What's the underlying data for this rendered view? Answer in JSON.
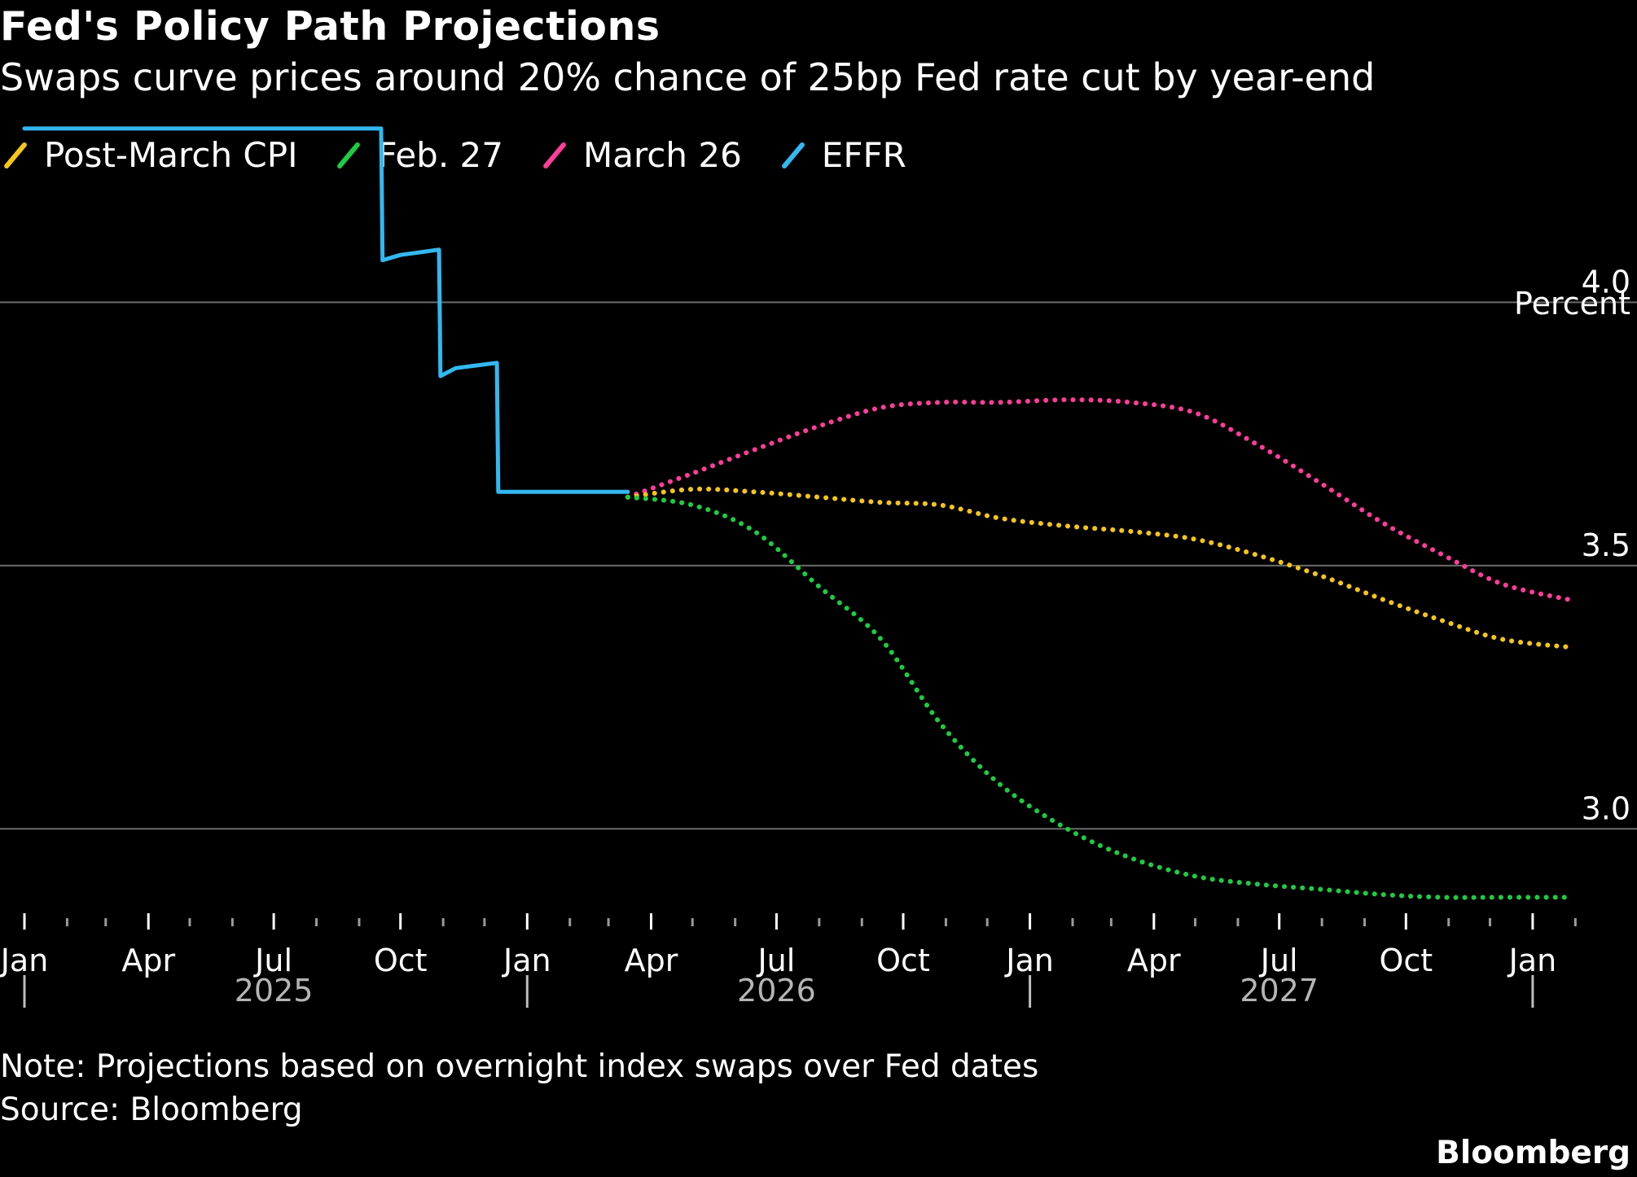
{
  "title": "Fed's Policy Path Projections",
  "subtitle": "Swaps curve prices around 20% chance of 25bp Fed rate cut by year-end",
  "note": "Note: Projections based on overnight index swaps over Fed dates",
  "source": "Source: Bloomberg",
  "brand": "Bloomberg",
  "chart_data": {
    "type": "line",
    "ylabel": "Percent",
    "ylim": [
      2.75,
      4.35
    ],
    "y_ticks": [
      {
        "value": 3.0,
        "label": "3.0"
      },
      {
        "value": 3.5,
        "label": "3.5"
      },
      {
        "value": 4.0,
        "label": "4.0"
      }
    ],
    "y_axis_side": "right",
    "grid": "horizontal",
    "x_range": [
      "2025-01-01",
      "2028-02-15"
    ],
    "x_month_ticks": [
      {
        "date": "2025-01-01",
        "label": "Jan"
      },
      {
        "date": "2025-04-01",
        "label": "Apr"
      },
      {
        "date": "2025-07-01",
        "label": "Jul"
      },
      {
        "date": "2025-10-01",
        "label": "Oct"
      },
      {
        "date": "2026-01-01",
        "label": "Jan"
      },
      {
        "date": "2026-04-01",
        "label": "Apr"
      },
      {
        "date": "2026-07-01",
        "label": "Jul"
      },
      {
        "date": "2026-10-01",
        "label": "Oct"
      },
      {
        "date": "2027-01-01",
        "label": "Jan"
      },
      {
        "date": "2027-04-01",
        "label": "Apr"
      },
      {
        "date": "2027-07-01",
        "label": "Jul"
      },
      {
        "date": "2027-10-01",
        "label": "Oct"
      },
      {
        "date": "2028-01-01",
        "label": "Jan"
      }
    ],
    "x_year_labels": [
      {
        "date": "2025-07-01",
        "label": "2025"
      },
      {
        "date": "2026-07-01",
        "label": "2026"
      },
      {
        "date": "2027-07-01",
        "label": "2027"
      }
    ],
    "x_year_separators": [
      "2025-01-01",
      "2026-01-01",
      "2027-01-01",
      "2028-01-01"
    ],
    "legend_position": "top-left",
    "series": [
      {
        "name": "Post-March CPI",
        "color": "#f5c518",
        "style": "dotted",
        "points": [
          [
            "2026-03-15",
            3.63
          ],
          [
            "2026-05-01",
            3.645
          ],
          [
            "2026-06-15",
            3.64
          ],
          [
            "2026-08-01",
            3.63
          ],
          [
            "2026-09-15",
            3.62
          ],
          [
            "2026-10-28",
            3.615
          ],
          [
            "2026-12-10",
            3.59
          ],
          [
            "2027-01-28",
            3.575
          ],
          [
            "2027-03-15",
            3.565
          ],
          [
            "2027-05-01",
            3.55
          ],
          [
            "2027-06-15",
            3.52
          ],
          [
            "2027-08-01",
            3.48
          ],
          [
            "2027-09-15",
            3.435
          ],
          [
            "2027-10-28",
            3.395
          ],
          [
            "2027-12-10",
            3.36
          ],
          [
            "2028-01-28",
            3.345
          ]
        ]
      },
      {
        "name": "Feb. 27",
        "color": "#1dcc42",
        "style": "dotted",
        "points": [
          [
            "2026-03-15",
            3.63
          ],
          [
            "2026-05-01",
            3.615
          ],
          [
            "2026-06-15",
            3.565
          ],
          [
            "2026-08-01",
            3.46
          ],
          [
            "2026-09-15",
            3.36
          ],
          [
            "2026-10-28",
            3.2
          ],
          [
            "2026-12-10",
            3.085
          ],
          [
            "2027-01-28",
            3.0
          ],
          [
            "2027-03-15",
            2.945
          ],
          [
            "2027-05-01",
            2.91
          ],
          [
            "2027-06-15",
            2.895
          ],
          [
            "2027-08-01",
            2.885
          ],
          [
            "2027-09-15",
            2.875
          ],
          [
            "2027-10-28",
            2.87
          ],
          [
            "2027-12-10",
            2.87
          ],
          [
            "2028-01-28",
            2.87
          ]
        ]
      },
      {
        "name": "March 26",
        "color": "#ff3d9a",
        "style": "dotted",
        "points": [
          [
            "2026-03-15",
            3.63
          ],
          [
            "2026-05-01",
            3.675
          ],
          [
            "2026-06-15",
            3.72
          ],
          [
            "2026-08-01",
            3.765
          ],
          [
            "2026-09-15",
            3.8
          ],
          [
            "2026-10-28",
            3.81
          ],
          [
            "2026-12-10",
            3.81
          ],
          [
            "2027-01-28",
            3.815
          ],
          [
            "2027-03-15",
            3.81
          ],
          [
            "2027-05-01",
            3.79
          ],
          [
            "2027-06-15",
            3.73
          ],
          [
            "2027-08-01",
            3.655
          ],
          [
            "2027-09-15",
            3.58
          ],
          [
            "2027-10-28",
            3.52
          ],
          [
            "2027-12-10",
            3.465
          ],
          [
            "2028-01-28",
            3.435
          ]
        ]
      },
      {
        "name": "EFFR",
        "color": "#33b8f0",
        "style": "solid",
        "points": [
          [
            "2025-01-01",
            4.33
          ],
          [
            "2025-09-17",
            4.33
          ],
          [
            "2025-09-18",
            4.08
          ],
          [
            "2025-10-01",
            4.09
          ],
          [
            "2025-10-15",
            4.095
          ],
          [
            "2025-10-29",
            4.1
          ],
          [
            "2025-10-30",
            3.86
          ],
          [
            "2025-11-10",
            3.875
          ],
          [
            "2025-11-25",
            3.88
          ],
          [
            "2025-12-10",
            3.885
          ],
          [
            "2025-12-11",
            3.64
          ],
          [
            "2026-03-15",
            3.64
          ]
        ]
      }
    ]
  }
}
